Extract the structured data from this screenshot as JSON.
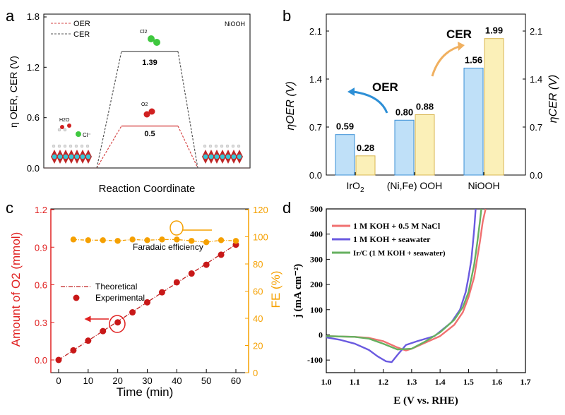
{
  "panels": {
    "a": {
      "letter": "a"
    },
    "b": {
      "letter": "b"
    },
    "c": {
      "letter": "c"
    },
    "d": {
      "letter": "d"
    }
  },
  "panel_a_labels": {
    "material": "NiOOH",
    "legend_oer": "OER",
    "legend_cer": "CER",
    "cl2": "Cl2",
    "o2": "O2",
    "h2o": "H2O",
    "cl_minus": "Cl⁻"
  },
  "panel_b_labels": {
    "oer_arrow": "OER",
    "cer_arrow": "CER"
  },
  "panel_c_labels": {
    "fe_annotation": "Faradaic efficiency"
  },
  "colors": {
    "oer_red": "#d64545",
    "cer_dark": "#555555",
    "blue_bar": "#bfe0f8",
    "blue_edge": "#3a8fd6",
    "yellow_bar": "#fbf0b8",
    "yellow_edge": "#d9b650",
    "c_red": "#e02020",
    "c_orange": "#f5a000",
    "d_red": "#f07070",
    "d_blue": "#6a5ae0",
    "d_green": "#66b060"
  },
  "chart_data": [
    {
      "id": "a",
      "type": "line",
      "title": "",
      "xlabel": "Reaction Coordinate",
      "ylabel": "η OER, CER (V)",
      "ylim": [
        0,
        1.8
      ],
      "yticks": [
        "0.0",
        "0.6",
        "1.2",
        "1.8"
      ],
      "series": [
        {
          "name": "OER",
          "values": [
            0,
            0.5,
            0
          ],
          "label": "0.5"
        },
        {
          "name": "CER",
          "values": [
            0,
            1.39,
            0
          ],
          "label": "1.39"
        }
      ]
    },
    {
      "id": "b",
      "type": "bar",
      "categories": [
        "IrO2",
        "(Ni,Fe) OOH",
        "NiOOH"
      ],
      "ylabel_left": "ηOER (V)",
      "ylabel_right": "ηCER (V)",
      "ylim": [
        0,
        2.1
      ],
      "yticks": [
        "0.0",
        "0.7",
        "1.4",
        "2.1"
      ],
      "series": [
        {
          "name": "OER",
          "values": [
            0.59,
            0.8,
            1.56
          ],
          "labels": [
            "0.59",
            "0.80",
            "1.56"
          ]
        },
        {
          "name": "CER",
          "values": [
            0.28,
            0.88,
            1.99
          ],
          "labels": [
            "0.28",
            "0.88",
            "1.99"
          ]
        }
      ]
    },
    {
      "id": "c",
      "type": "line",
      "xlabel": "Time (min)",
      "ylabel_left": "Amount of O2 (mmol)",
      "ylabel_right": "FE (%)",
      "x": [
        0,
        5,
        10,
        15,
        20,
        25,
        30,
        35,
        40,
        45,
        50,
        55,
        60
      ],
      "xticks": [
        "0",
        "10",
        "20",
        "30",
        "40",
        "50",
        "60"
      ],
      "ylim_left": [
        -0.05,
        1.2
      ],
      "yticks_left": [
        "0.0",
        "0.3",
        "0.6",
        "0.9",
        "1.2"
      ],
      "ylim_right": [
        0,
        120
      ],
      "yticks_right": [
        "0",
        "20",
        "40",
        "60",
        "80",
        "100",
        "120"
      ],
      "series": [
        {
          "name": "Theoretical",
          "values": [
            0,
            0.077,
            0.154,
            0.231,
            0.307,
            0.384,
            0.461,
            0.538,
            0.615,
            0.692,
            0.768,
            0.845,
            0.922
          ]
        },
        {
          "name": "Experimental",
          "values": [
            0,
            0.077,
            0.154,
            0.23,
            0.3,
            0.38,
            0.46,
            0.54,
            0.62,
            0.69,
            0.76,
            0.84,
            0.92
          ]
        },
        {
          "name": "Faradaic efficiency",
          "x": [
            5,
            10,
            15,
            20,
            25,
            30,
            35,
            40,
            45,
            50,
            55,
            60
          ],
          "values": [
            98,
            97.5,
            97.5,
            97,
            98,
            97.5,
            98,
            98,
            97,
            96,
            97.5,
            97
          ]
        }
      ]
    },
    {
      "id": "d",
      "type": "line",
      "xlabel": "E (V vs. RHE)",
      "ylabel": "j (mA cm⁻²)",
      "xlim": [
        1.0,
        1.7
      ],
      "xticks": [
        "1.0",
        "1.1",
        "1.2",
        "1.3",
        "1.4",
        "1.5",
        "1.6",
        "1.7"
      ],
      "ylim": [
        -150,
        500
      ],
      "yticks": [
        "-100",
        "0",
        "100",
        "200",
        "300",
        "400",
        "500"
      ],
      "series": [
        {
          "name": "1 M KOH + 0.5 M NaCl",
          "x": [
            1.0,
            1.1,
            1.15,
            1.2,
            1.25,
            1.28,
            1.3,
            1.35,
            1.4,
            1.45,
            1.48,
            1.5,
            1.52,
            1.53,
            1.54,
            1.55,
            1.56
          ],
          "values": [
            -5,
            -8,
            -12,
            -25,
            -50,
            -62,
            -55,
            -30,
            -5,
            40,
            90,
            150,
            230,
            300,
            370,
            450,
            500
          ]
        },
        {
          "name": "1 M KOH + seawater",
          "x": [
            1.0,
            1.05,
            1.1,
            1.15,
            1.18,
            1.21,
            1.23,
            1.25,
            1.28,
            1.32,
            1.38,
            1.44,
            1.47,
            1.49,
            1.5,
            1.51,
            1.52,
            1.525
          ],
          "values": [
            -10,
            -20,
            -35,
            -60,
            -85,
            -105,
            -108,
            -80,
            -40,
            -25,
            -5,
            50,
            100,
            170,
            230,
            300,
            420,
            500
          ]
        },
        {
          "name": "Ir/C (1 M KOH + seawater)",
          "x": [
            1.0,
            1.1,
            1.15,
            1.2,
            1.25,
            1.3,
            1.35,
            1.4,
            1.45,
            1.48,
            1.5,
            1.52,
            1.53,
            1.54,
            1.545
          ],
          "values": [
            -5,
            -8,
            -15,
            -35,
            -58,
            -55,
            -25,
            10,
            60,
            110,
            170,
            280,
            360,
            450,
            500
          ]
        }
      ]
    }
  ]
}
